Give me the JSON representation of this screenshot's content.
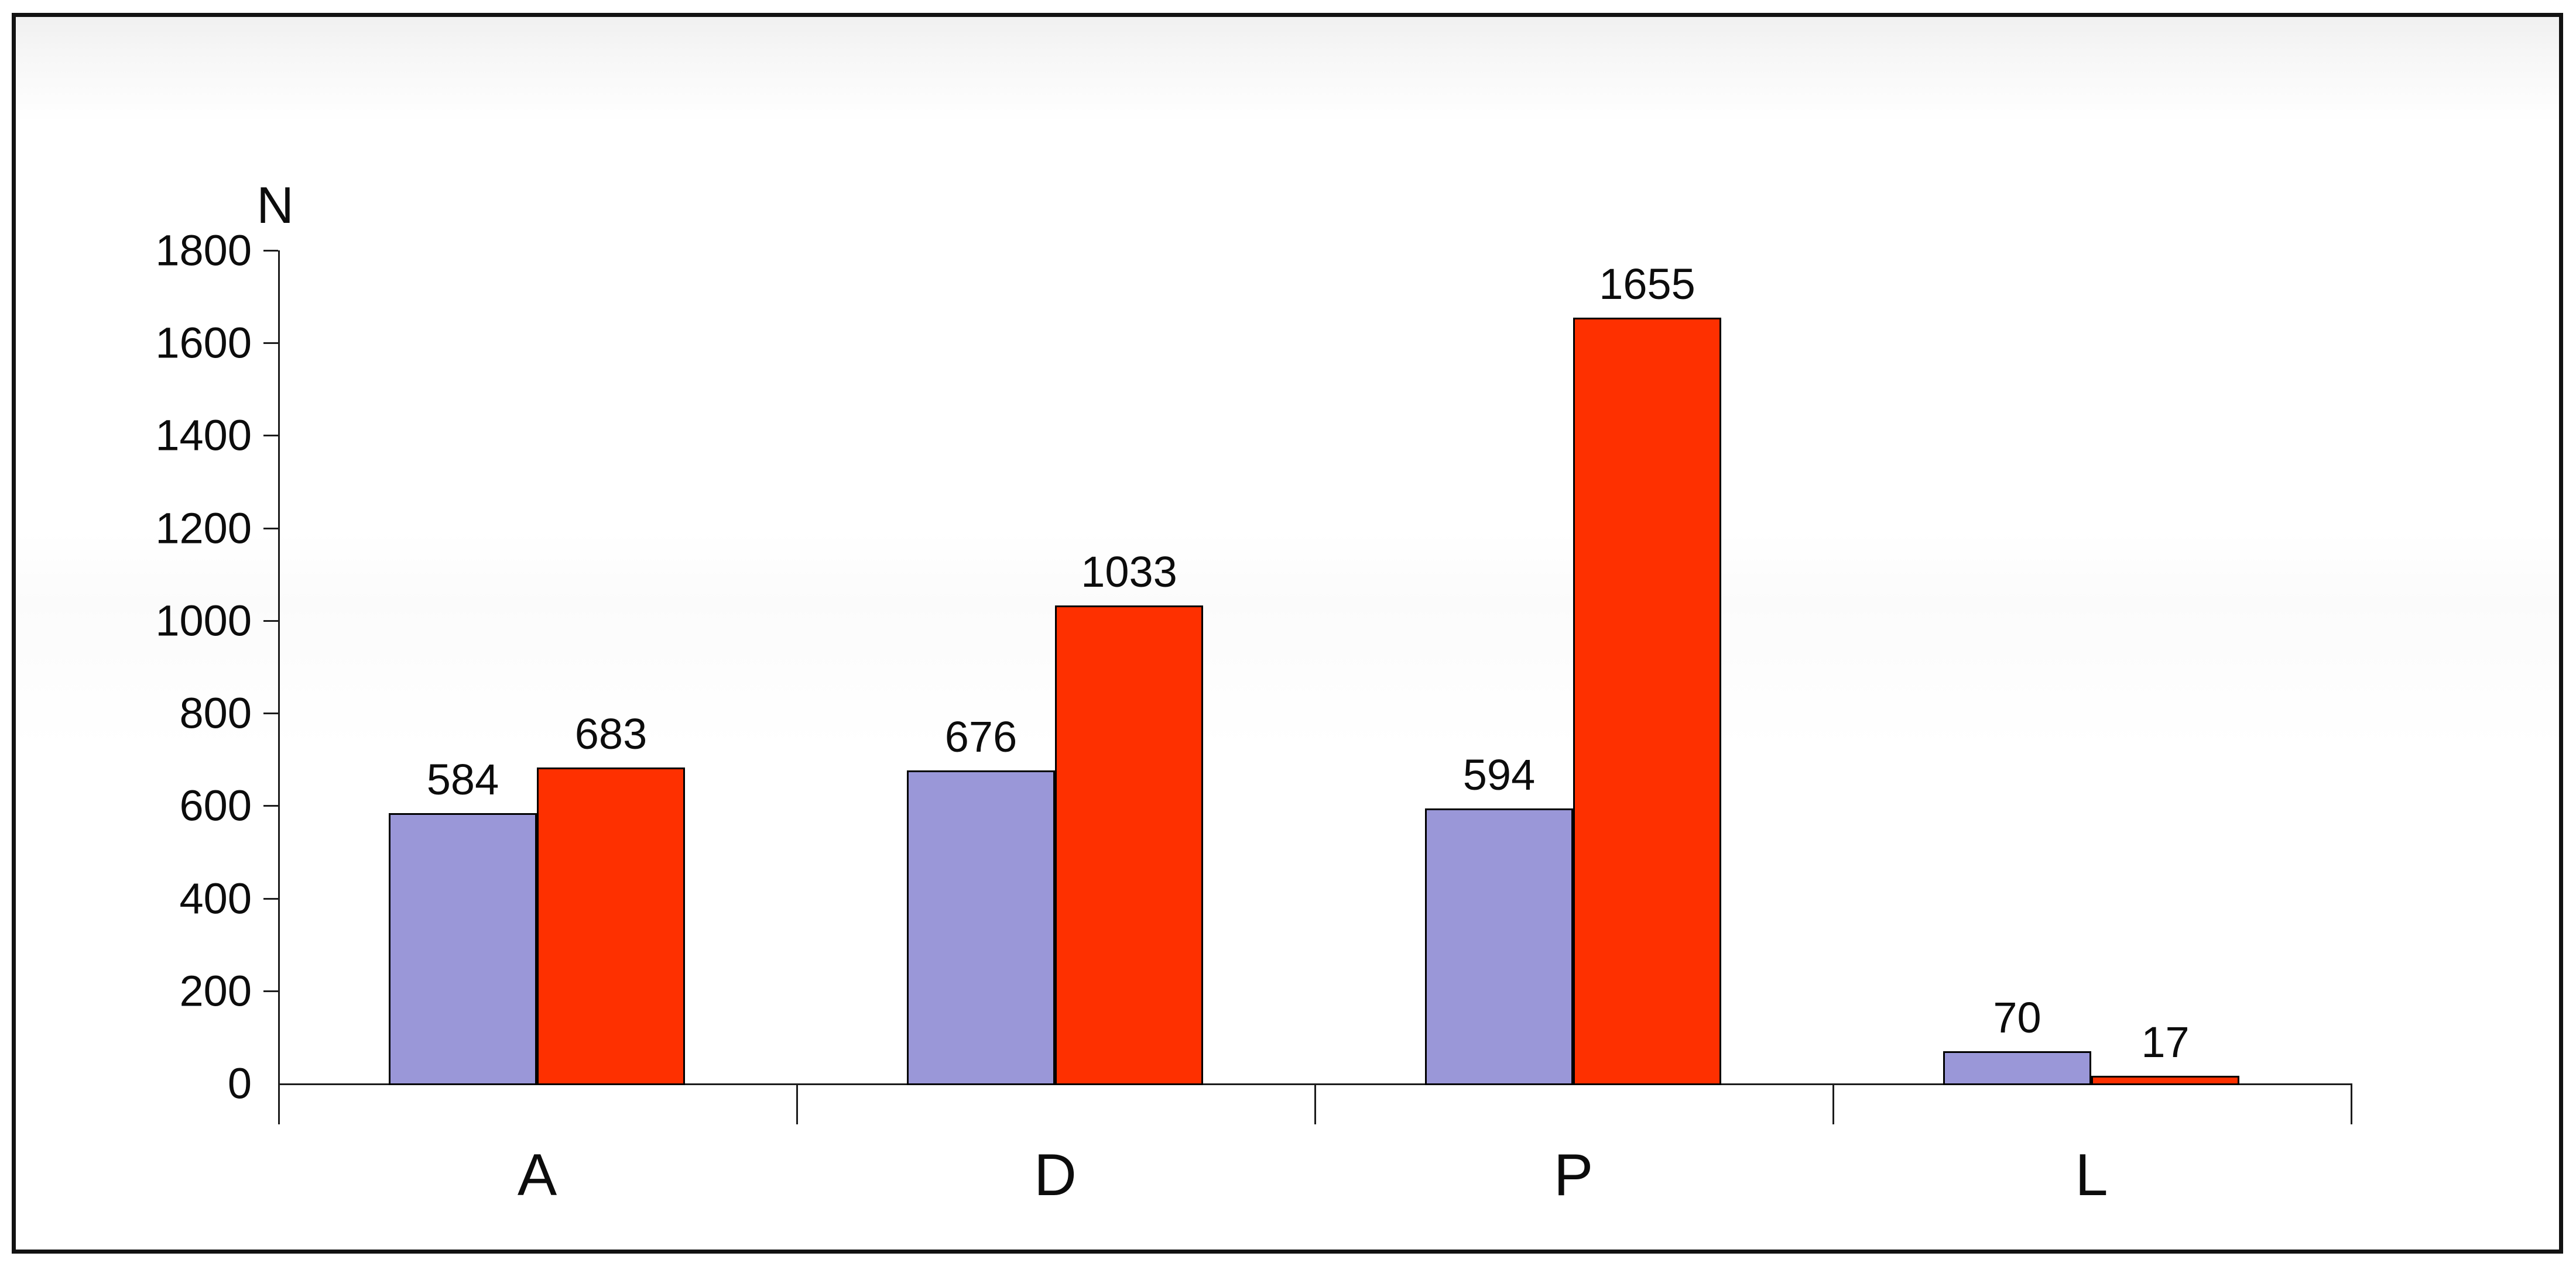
{
  "chart_data": {
    "type": "bar",
    "categories": [
      "A",
      "D",
      "P",
      "L"
    ],
    "series": [
      {
        "color": "#9a97d8",
        "values": [
          584,
          676,
          594,
          70
        ]
      },
      {
        "color": "#fe3000",
        "values": [
          683,
          1033,
          1655,
          17
        ]
      }
    ],
    "title": "",
    "xlabel": "",
    "ylabel": "N",
    "ylim": [
      0,
      1800
    ],
    "ytick_step": 200,
    "value_labels": [
      [
        "584",
        "676",
        "594",
        "70"
      ],
      [
        "683",
        "1033",
        "1655",
        "17"
      ]
    ],
    "ytick_labels": [
      "0",
      "200",
      "400",
      "600",
      "800",
      "1000",
      "1200",
      "1400",
      "1600",
      "1800"
    ],
    "grid": false,
    "legend_position": "none",
    "bar_outline_color": "#000000",
    "axis_color": "#1c1c1c",
    "frame_border_color": "#121212"
  }
}
